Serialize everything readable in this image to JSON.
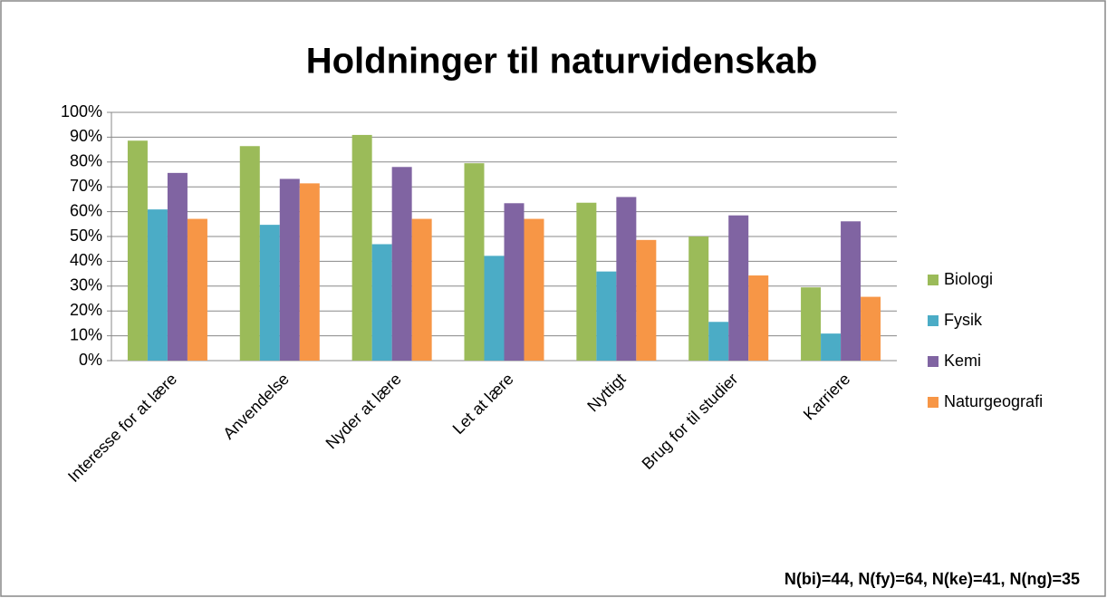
{
  "chart_data": {
    "type": "bar",
    "title": "Holdninger til naturvidenskab",
    "annotation": "N(bi)=44, N(fy)=64, N(ke)=41, N(ng)=35",
    "categories": [
      "Interesse for at lære",
      "Anvendelse",
      "Nyder at lære",
      "Let at lære",
      "Nyttigt",
      "Brug for til studier",
      "Karriere"
    ],
    "series": [
      {
        "name": "Biologi",
        "color": "#9bbb59",
        "values": [
          88.6,
          86.4,
          90.9,
          79.5,
          63.6,
          50,
          29.5
        ]
      },
      {
        "name": "Fysik",
        "color": "#4bacc6",
        "values": [
          60.9,
          54.7,
          46.9,
          42.2,
          35.9,
          15.6,
          10.9
        ]
      },
      {
        "name": "Kemi",
        "color": "#8064a2",
        "values": [
          75.6,
          73.2,
          78,
          63.4,
          65.9,
          58.5,
          56.1
        ]
      },
      {
        "name": "Naturgeografi",
        "color": "#f79646",
        "values": [
          57.1,
          71.4,
          57.1,
          57.1,
          48.6,
          34.3,
          25.7
        ]
      }
    ],
    "ylim": [
      0,
      100
    ],
    "yticks": [
      {
        "value": 0,
        "label": "0%"
      },
      {
        "value": 10,
        "label": "10%"
      },
      {
        "value": 20,
        "label": "20%"
      },
      {
        "value": 30,
        "label": "30%"
      },
      {
        "value": 40,
        "label": "40%"
      },
      {
        "value": 50,
        "label": "50%"
      },
      {
        "value": 60,
        "label": "60%"
      },
      {
        "value": 70,
        "label": "70%"
      },
      {
        "value": 80,
        "label": "80%"
      },
      {
        "value": 90,
        "label": "90%"
      },
      {
        "value": 100,
        "label": "100%"
      }
    ],
    "grid": true,
    "legend": "right"
  }
}
